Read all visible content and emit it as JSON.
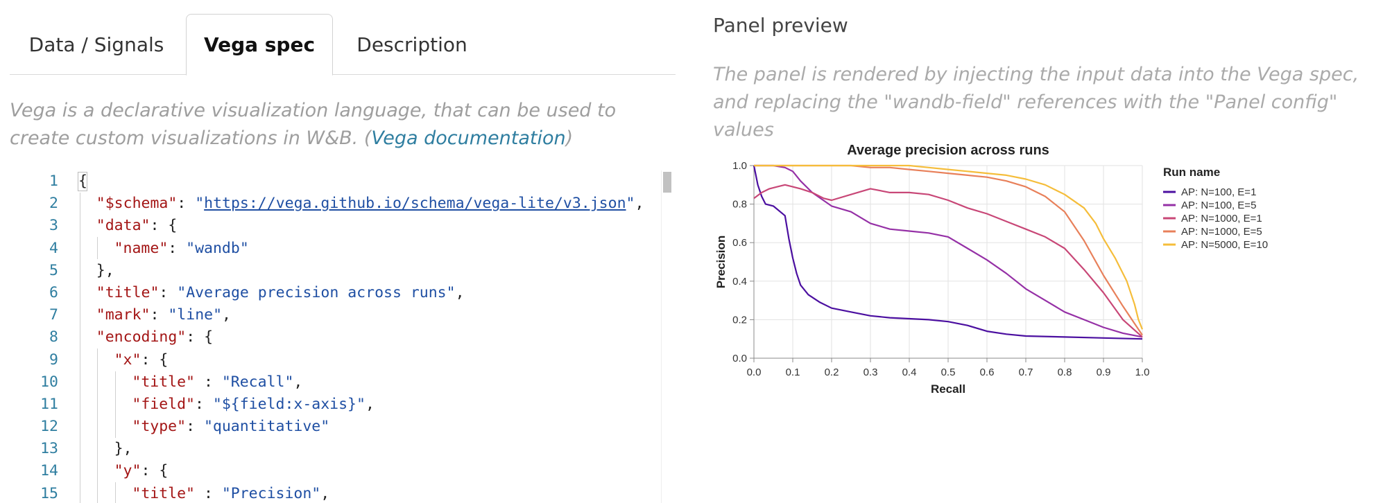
{
  "tabs": [
    {
      "label": "Data / Signals",
      "active": false
    },
    {
      "label": "Vega spec",
      "active": true
    },
    {
      "label": "Description",
      "active": false
    }
  ],
  "intro": {
    "text": "Vega is a declarative visualization language, that can be used to create custom visualizations in W&B. (",
    "link": "Vega documentation",
    "suffix": ")"
  },
  "editor": {
    "line_numbers": [
      "1",
      "2",
      "3",
      "4",
      "5",
      "6",
      "7",
      "8",
      "9",
      "10",
      "11",
      "12",
      "13",
      "14",
      "15"
    ],
    "lines": [
      {
        "indent": 0,
        "tokens": [
          {
            "t": "{",
            "c": "p"
          }
        ]
      },
      {
        "indent": 1,
        "tokens": [
          {
            "t": "\"$schema\"",
            "c": "k"
          },
          {
            "t": ": ",
            "c": "p"
          },
          {
            "t": "\"",
            "c": "s"
          },
          {
            "t": "https://vega.github.io/schema/vega-lite/v3.json",
            "c": "u"
          },
          {
            "t": "\"",
            "c": "s"
          },
          {
            "t": ",",
            "c": "p"
          }
        ]
      },
      {
        "indent": 1,
        "tokens": [
          {
            "t": "\"data\"",
            "c": "k"
          },
          {
            "t": ": {",
            "c": "p"
          }
        ]
      },
      {
        "indent": 2,
        "tokens": [
          {
            "t": "\"name\"",
            "c": "k"
          },
          {
            "t": ": ",
            "c": "p"
          },
          {
            "t": "\"wandb\"",
            "c": "s"
          }
        ]
      },
      {
        "indent": 1,
        "tokens": [
          {
            "t": "},",
            "c": "p"
          }
        ]
      },
      {
        "indent": 1,
        "tokens": [
          {
            "t": "\"title\"",
            "c": "k"
          },
          {
            "t": ": ",
            "c": "p"
          },
          {
            "t": "\"Average precision across runs\"",
            "c": "s"
          },
          {
            "t": ",",
            "c": "p"
          }
        ]
      },
      {
        "indent": 1,
        "tokens": [
          {
            "t": "\"mark\"",
            "c": "k"
          },
          {
            "t": ": ",
            "c": "p"
          },
          {
            "t": "\"line\"",
            "c": "s"
          },
          {
            "t": ",",
            "c": "p"
          }
        ]
      },
      {
        "indent": 1,
        "tokens": [
          {
            "t": "\"encoding\"",
            "c": "k"
          },
          {
            "t": ": {",
            "c": "p"
          }
        ]
      },
      {
        "indent": 2,
        "tokens": [
          {
            "t": "\"x\"",
            "c": "k"
          },
          {
            "t": ": {",
            "c": "p"
          }
        ]
      },
      {
        "indent": 3,
        "tokens": [
          {
            "t": "\"title\"",
            "c": "k"
          },
          {
            "t": " : ",
            "c": "p"
          },
          {
            "t": "\"Recall\"",
            "c": "s"
          },
          {
            "t": ",",
            "c": "p"
          }
        ]
      },
      {
        "indent": 3,
        "tokens": [
          {
            "t": "\"field\"",
            "c": "k"
          },
          {
            "t": ": ",
            "c": "p"
          },
          {
            "t": "\"${field:x-axis}\"",
            "c": "s"
          },
          {
            "t": ",",
            "c": "p"
          }
        ]
      },
      {
        "indent": 3,
        "tokens": [
          {
            "t": "\"type\"",
            "c": "k"
          },
          {
            "t": ": ",
            "c": "p"
          },
          {
            "t": "\"quantitative\"",
            "c": "s"
          }
        ]
      },
      {
        "indent": 2,
        "tokens": [
          {
            "t": "},",
            "c": "p"
          }
        ]
      },
      {
        "indent": 2,
        "tokens": [
          {
            "t": "\"y\"",
            "c": "k"
          },
          {
            "t": ": {",
            "c": "p"
          }
        ]
      },
      {
        "indent": 3,
        "tokens": [
          {
            "t": "\"title\"",
            "c": "k"
          },
          {
            "t": " : ",
            "c": "p"
          },
          {
            "t": "\"Precision\"",
            "c": "s"
          },
          {
            "t": ",",
            "c": "p"
          }
        ]
      }
    ]
  },
  "preview": {
    "title": "Panel preview",
    "description": "The panel is rendered by injecting the input data into the Vega spec, and replacing the \"wandb-field\" references with the \"Panel config\" values"
  },
  "chart_data": {
    "type": "line",
    "title": "Average precision across runs",
    "xlabel": "Recall",
    "ylabel": "Precision",
    "xlim": [
      0,
      1
    ],
    "ylim": [
      0,
      1
    ],
    "xticks": [
      "0.0",
      "0.1",
      "0.2",
      "0.3",
      "0.4",
      "0.5",
      "0.6",
      "0.7",
      "0.8",
      "0.9",
      "1.0"
    ],
    "yticks": [
      "0.0",
      "0.2",
      "0.4",
      "0.6",
      "0.8",
      "1.0"
    ],
    "grid": true,
    "legend_title": "Run name",
    "legend_position": "right",
    "series": [
      {
        "name": "AP: N=100, E=1",
        "color": "#4b0fa0",
        "x": [
          0.0,
          0.01,
          0.02,
          0.03,
          0.05,
          0.08,
          0.09,
          0.1,
          0.11,
          0.12,
          0.14,
          0.17,
          0.2,
          0.25,
          0.3,
          0.35,
          0.4,
          0.45,
          0.5,
          0.55,
          0.6,
          0.65,
          0.7,
          0.8,
          0.9,
          1.0
        ],
        "y": [
          1.0,
          0.9,
          0.84,
          0.8,
          0.79,
          0.74,
          0.62,
          0.52,
          0.44,
          0.38,
          0.33,
          0.29,
          0.26,
          0.24,
          0.22,
          0.21,
          0.205,
          0.2,
          0.19,
          0.17,
          0.14,
          0.125,
          0.115,
          0.11,
          0.105,
          0.1
        ]
      },
      {
        "name": "AP: N=100, E=5",
        "color": "#9530a6",
        "x": [
          0.0,
          0.02,
          0.05,
          0.08,
          0.1,
          0.12,
          0.15,
          0.2,
          0.25,
          0.3,
          0.35,
          0.4,
          0.45,
          0.5,
          0.55,
          0.6,
          0.65,
          0.7,
          0.75,
          0.8,
          0.85,
          0.9,
          0.95,
          1.0
        ],
        "y": [
          1.0,
          1.0,
          1.0,
          0.99,
          0.97,
          0.92,
          0.86,
          0.79,
          0.76,
          0.7,
          0.67,
          0.66,
          0.65,
          0.63,
          0.57,
          0.51,
          0.44,
          0.36,
          0.3,
          0.24,
          0.2,
          0.16,
          0.13,
          0.11
        ]
      },
      {
        "name": "AP: N=1000, E=1",
        "color": "#c84777",
        "x": [
          0.0,
          0.02,
          0.04,
          0.06,
          0.08,
          0.1,
          0.12,
          0.15,
          0.18,
          0.2,
          0.25,
          0.3,
          0.35,
          0.4,
          0.45,
          0.5,
          0.55,
          0.6,
          0.65,
          0.7,
          0.75,
          0.8,
          0.85,
          0.9,
          0.95,
          1.0
        ],
        "y": [
          0.83,
          0.86,
          0.88,
          0.89,
          0.9,
          0.89,
          0.88,
          0.86,
          0.83,
          0.82,
          0.85,
          0.88,
          0.86,
          0.86,
          0.85,
          0.82,
          0.78,
          0.75,
          0.71,
          0.67,
          0.63,
          0.57,
          0.46,
          0.34,
          0.2,
          0.11
        ]
      },
      {
        "name": "AP: N=1000, E=5",
        "color": "#e8805a",
        "x": [
          0.0,
          0.05,
          0.1,
          0.15,
          0.2,
          0.25,
          0.3,
          0.35,
          0.4,
          0.45,
          0.5,
          0.55,
          0.6,
          0.65,
          0.7,
          0.75,
          0.8,
          0.85,
          0.9,
          0.95,
          0.98,
          1.0
        ],
        "y": [
          1.0,
          1.0,
          1.0,
          1.0,
          1.0,
          1.0,
          0.99,
          0.99,
          0.98,
          0.97,
          0.96,
          0.95,
          0.94,
          0.92,
          0.89,
          0.84,
          0.76,
          0.61,
          0.43,
          0.27,
          0.18,
          0.12
        ]
      },
      {
        "name": "AP: N=5000, E=10",
        "color": "#f5bd3a",
        "x": [
          0.0,
          0.05,
          0.1,
          0.2,
          0.3,
          0.4,
          0.45,
          0.5,
          0.55,
          0.6,
          0.65,
          0.7,
          0.75,
          0.8,
          0.85,
          0.88,
          0.9,
          0.93,
          0.96,
          0.98,
          0.99,
          1.0
        ],
        "y": [
          1.0,
          1.0,
          1.0,
          1.0,
          1.0,
          1.0,
          0.99,
          0.98,
          0.97,
          0.96,
          0.95,
          0.93,
          0.9,
          0.85,
          0.78,
          0.7,
          0.62,
          0.52,
          0.4,
          0.28,
          0.2,
          0.15
        ]
      }
    ]
  }
}
